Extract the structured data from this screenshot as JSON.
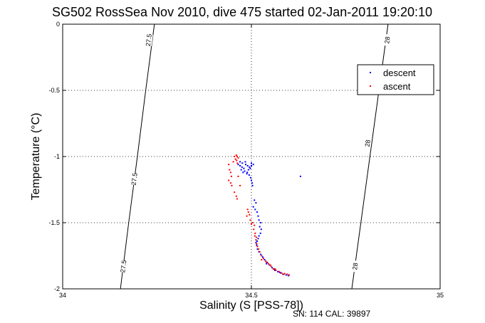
{
  "chart_data": {
    "type": "scatter",
    "title": "SG502 RossSea Nov 2010, dive 475 started 02-Jan-2011 19:20:10",
    "xlabel": "Salinity (S [PSS-78])",
    "ylabel": "Temperature (°C)",
    "xlim": [
      34,
      35
    ],
    "ylim": [
      -2,
      0
    ],
    "x_ticks": [
      "34",
      "34.5",
      "35"
    ],
    "y_ticks": [
      "0",
      "-0.5",
      "-1",
      "-1.5",
      "-2"
    ],
    "grid": true,
    "legend_position": "top-right",
    "footer": "SN: 114  CAL: 39897",
    "contours": [
      {
        "label": "27.5",
        "points": [
          [
            34.153,
            -2.0
          ],
          [
            34.175,
            -1.5
          ],
          [
            34.198,
            -1.0
          ],
          [
            34.22,
            -0.5
          ],
          [
            34.243,
            0.0
          ]
        ],
        "label_positions": [
          [
            34.161,
            -1.83
          ],
          [
            34.19,
            -1.17
          ],
          [
            34.228,
            -0.12
          ]
        ]
      },
      {
        "label": "28",
        "points": [
          [
            34.766,
            -2.0
          ],
          [
            34.79,
            -1.5
          ],
          [
            34.814,
            -1.0
          ],
          [
            34.838,
            -0.5
          ],
          [
            34.862,
            0.0
          ]
        ],
        "label_positions": [
          [
            34.775,
            -1.83
          ],
          [
            34.808,
            -0.9
          ],
          [
            34.86,
            -0.12
          ]
        ]
      }
    ],
    "series": [
      {
        "name": "descent",
        "color": "#0000ff",
        "points": [
          [
            34.465,
            -1.06
          ],
          [
            34.47,
            -1.07
          ],
          [
            34.475,
            -1.08
          ],
          [
            34.48,
            -1.09
          ],
          [
            34.485,
            -1.06
          ],
          [
            34.49,
            -1.07
          ],
          [
            34.495,
            -1.08
          ],
          [
            34.5,
            -1.07
          ],
          [
            34.505,
            -1.06
          ],
          [
            34.473,
            -1.1
          ],
          [
            34.478,
            -1.12
          ],
          [
            34.482,
            -1.11
          ],
          [
            34.488,
            -1.13
          ],
          [
            34.492,
            -1.1
          ],
          [
            34.497,
            -1.09
          ],
          [
            34.47,
            -1.04
          ],
          [
            34.476,
            -1.05
          ],
          [
            34.484,
            -1.04
          ],
          [
            34.5,
            -1.05
          ],
          [
            34.489,
            -1.12
          ],
          [
            34.494,
            -1.14
          ],
          [
            34.498,
            -1.16
          ],
          [
            34.5,
            -1.18
          ],
          [
            34.502,
            -1.2
          ],
          [
            34.503,
            -1.22
          ],
          [
            34.63,
            -1.15
          ],
          [
            34.508,
            -1.33
          ],
          [
            34.512,
            -1.35
          ],
          [
            34.505,
            -1.38
          ],
          [
            34.51,
            -1.4
          ],
          [
            34.515,
            -1.42
          ],
          [
            34.518,
            -1.45
          ],
          [
            34.52,
            -1.48
          ],
          [
            34.525,
            -1.5
          ],
          [
            34.522,
            -1.53
          ],
          [
            34.526,
            -1.55
          ],
          [
            34.524,
            -1.58
          ],
          [
            34.52,
            -1.6
          ],
          [
            34.518,
            -1.62
          ],
          [
            34.515,
            -1.64
          ],
          [
            34.512,
            -1.65
          ],
          [
            34.514,
            -1.67
          ],
          [
            34.516,
            -1.7
          ],
          [
            34.52,
            -1.72
          ],
          [
            34.525,
            -1.74
          ],
          [
            34.53,
            -1.76
          ],
          [
            34.535,
            -1.78
          ],
          [
            34.542,
            -1.8
          ],
          [
            34.548,
            -1.82
          ],
          [
            34.555,
            -1.84
          ],
          [
            34.562,
            -1.86
          ],
          [
            34.57,
            -1.87
          ],
          [
            34.578,
            -1.88
          ],
          [
            34.585,
            -1.89
          ],
          [
            34.592,
            -1.895
          ],
          [
            34.598,
            -1.9
          ],
          [
            34.54,
            -1.81
          ],
          [
            34.56,
            -1.85
          ],
          [
            34.575,
            -1.875
          ]
        ]
      },
      {
        "name": "ascent",
        "color": "#ff0000",
        "points": [
          [
            34.46,
            -0.99
          ],
          [
            34.462,
            -1.0
          ],
          [
            34.465,
            -1.01
          ],
          [
            34.458,
            -1.02
          ],
          [
            34.461,
            -1.03
          ],
          [
            34.455,
            -1.0
          ],
          [
            34.452,
            -1.04
          ],
          [
            34.463,
            -1.05
          ],
          [
            34.44,
            -1.06
          ],
          [
            34.442,
            -1.1
          ],
          [
            34.445,
            -1.12
          ],
          [
            34.447,
            -1.15
          ],
          [
            34.44,
            -1.18
          ],
          [
            34.445,
            -1.2
          ],
          [
            34.448,
            -1.22
          ],
          [
            34.465,
            -1.15
          ],
          [
            34.47,
            -1.22
          ],
          [
            34.455,
            -1.27
          ],
          [
            34.46,
            -1.3
          ],
          [
            34.462,
            -1.32
          ],
          [
            34.49,
            -1.4
          ],
          [
            34.492,
            -1.42
          ],
          [
            34.495,
            -1.44
          ],
          [
            34.488,
            -1.45
          ],
          [
            34.497,
            -1.48
          ],
          [
            34.503,
            -1.5
          ],
          [
            34.508,
            -1.52
          ],
          [
            34.506,
            -1.55
          ],
          [
            34.51,
            -1.58
          ],
          [
            34.509,
            -1.6
          ],
          [
            34.512,
            -1.63
          ],
          [
            34.514,
            -1.66
          ],
          [
            34.516,
            -1.68
          ],
          [
            34.519,
            -1.7
          ],
          [
            34.522,
            -1.72
          ],
          [
            34.527,
            -1.75
          ],
          [
            34.532,
            -1.77
          ],
          [
            34.538,
            -1.79
          ],
          [
            34.545,
            -1.81
          ],
          [
            34.552,
            -1.83
          ],
          [
            34.558,
            -1.85
          ],
          [
            34.565,
            -1.86
          ],
          [
            34.573,
            -1.87
          ],
          [
            34.58,
            -1.88
          ],
          [
            34.588,
            -1.885
          ],
          [
            34.595,
            -1.89
          ],
          [
            34.6,
            -1.895
          ],
          [
            34.527,
            -1.78
          ],
          [
            34.54,
            -1.8
          ],
          [
            34.55,
            -1.82
          ],
          [
            34.563,
            -1.85
          ],
          [
            34.583,
            -1.89
          ],
          [
            34.5,
            -1.51
          ],
          [
            34.513,
            -1.61
          ]
        ]
      }
    ]
  }
}
